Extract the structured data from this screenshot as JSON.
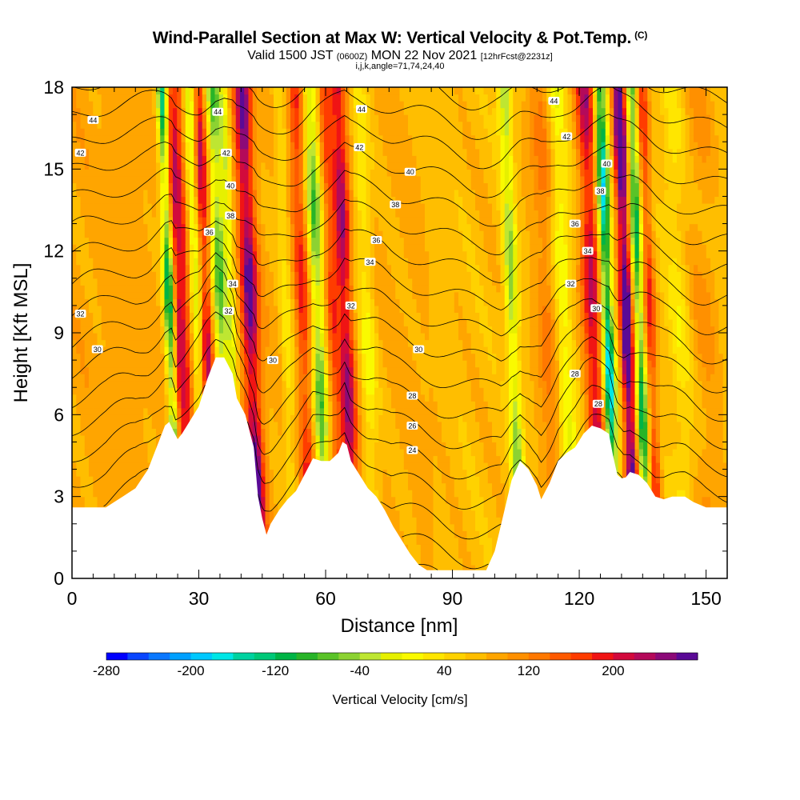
{
  "title": {
    "main": "Wind-Parallel Section at Max W: Vertical Velocity & Pot.Temp.",
    "copyright_mark": "(C)",
    "valid_prefix": "Valid 1500 JST",
    "valid_utc": "(0600Z)",
    "valid_date": "MON 22 Nov 2021",
    "forecast": "[12hrFcst@2231z]",
    "indices": "i,j,k,angle=71,74,24,40"
  },
  "chart_data": {
    "type": "heatmap",
    "title": "Wind-Parallel Section at Max W: Vertical Velocity & Pot.Temp.",
    "xlabel": "Distance [nm]",
    "ylabel": "Height [Kft MSL]",
    "xlim": [
      0,
      155
    ],
    "ylim": [
      0,
      18
    ],
    "x_ticks": [
      0,
      30,
      60,
      90,
      120,
      150
    ],
    "y_ticks": [
      0,
      3,
      6,
      9,
      12,
      15,
      18
    ],
    "colorbar": {
      "label": "Vertical Velocity [cm/s]",
      "min": -280,
      "max": 280,
      "step": 20,
      "tick_labels": [
        "-280",
        "-200",
        "-120",
        "-40",
        "40",
        "120",
        "200"
      ],
      "tick_values": [
        -280,
        -200,
        -120,
        -40,
        40,
        120,
        200
      ],
      "colors": [
        "#0000ff",
        "#0a46ff",
        "#0a78ff",
        "#00a0ff",
        "#00c8ff",
        "#00e6e6",
        "#00d2a0",
        "#00c878",
        "#00b446",
        "#28b428",
        "#5ac328",
        "#8cd232",
        "#bee632",
        "#e6f000",
        "#fafa00",
        "#ffe600",
        "#ffd200",
        "#ffbe00",
        "#ffa500",
        "#ff9000",
        "#ff7800",
        "#ff5a00",
        "#ff3c00",
        "#f01414",
        "#d20a3c",
        "#b40a5a",
        "#8c0a78",
        "#5a0a96"
      ]
    },
    "terrain_kft": [
      [
        0,
        2.6
      ],
      [
        8,
        2.6
      ],
      [
        11,
        2.9
      ],
      [
        15,
        3.3
      ],
      [
        18,
        4.0
      ],
      [
        20,
        4.8
      ],
      [
        22,
        5.6
      ],
      [
        23.5,
        5.8
      ],
      [
        24.5,
        5.0
      ],
      [
        26,
        5.3
      ],
      [
        28,
        5.8
      ],
      [
        30,
        6.3
      ],
      [
        32,
        7.3
      ],
      [
        34,
        8.1
      ],
      [
        36,
        8.1
      ],
      [
        38,
        7.5
      ],
      [
        39,
        6.6
      ],
      [
        41,
        6.0
      ],
      [
        43,
        4.8
      ],
      [
        44,
        3.0
      ],
      [
        45,
        2.2
      ],
      [
        46,
        1.6
      ],
      [
        47,
        2.0
      ],
      [
        49,
        2.5
      ],
      [
        51,
        2.9
      ],
      [
        53,
        3.2
      ],
      [
        55,
        3.8
      ],
      [
        57,
        4.4
      ],
      [
        59,
        4.3
      ],
      [
        61,
        4.3
      ],
      [
        63,
        4.6
      ],
      [
        64.5,
        5.2
      ],
      [
        66,
        4.3
      ],
      [
        68,
        3.8
      ],
      [
        70,
        3.3
      ],
      [
        72,
        3.0
      ],
      [
        74,
        2.5
      ],
      [
        76,
        1.9
      ],
      [
        78,
        1.4
      ],
      [
        80,
        0.9
      ],
      [
        82,
        0.5
      ],
      [
        84,
        0.3
      ],
      [
        86,
        0.3
      ],
      [
        90,
        0.3
      ],
      [
        94,
        0.3
      ],
      [
        98,
        0.3
      ],
      [
        100,
        1.0
      ],
      [
        102,
        2.3
      ],
      [
        104,
        3.6
      ],
      [
        106,
        4.3
      ],
      [
        108,
        4.0
      ],
      [
        110,
        3.4
      ],
      [
        111,
        2.9
      ],
      [
        113,
        3.5
      ],
      [
        115,
        4.3
      ],
      [
        117,
        4.6
      ],
      [
        119,
        4.8
      ],
      [
        121,
        5.3
      ],
      [
        123,
        5.6
      ],
      [
        125,
        5.5
      ],
      [
        127,
        5.3
      ],
      [
        128,
        4.5
      ],
      [
        129,
        3.8
      ],
      [
        130.5,
        3.6
      ],
      [
        132,
        3.9
      ],
      [
        134,
        3.8
      ],
      [
        136,
        3.5
      ],
      [
        138,
        3.0
      ],
      [
        140,
        2.9
      ],
      [
        142,
        3.0
      ],
      [
        145,
        3.0
      ],
      [
        147,
        2.8
      ],
      [
        150,
        2.6
      ],
      [
        155,
        2.6
      ]
    ],
    "vertical_velocity_features_cms": [
      {
        "x": 4,
        "w": 160,
        "amp": 28
      },
      {
        "x": 20,
        "w": 360,
        "amp": 60
      },
      {
        "x": 23.5,
        "w": 1.3,
        "amp": -230
      },
      {
        "x": 25.5,
        "w": 1.6,
        "amp": 150
      },
      {
        "x": 27.3,
        "w": 1.2,
        "amp": 70
      },
      {
        "x": 30,
        "w": 1.4,
        "amp": -130
      },
      {
        "x": 32,
        "w": 1.6,
        "amp": 150
      },
      {
        "x": 35.5,
        "w": 1.8,
        "amp": -175
      },
      {
        "x": 38,
        "w": 1.2,
        "amp": -90
      },
      {
        "x": 42.5,
        "w": 2.0,
        "amp": 200
      },
      {
        "x": 51,
        "w": 1.6,
        "amp": -60
      },
      {
        "x": 55,
        "w": 1.8,
        "amp": 110
      },
      {
        "x": 58.5,
        "w": 1.8,
        "amp": -170
      },
      {
        "x": 62,
        "w": 1.6,
        "amp": 90
      },
      {
        "x": 65,
        "w": 1.8,
        "amp": 170
      },
      {
        "x": 70,
        "w": 2.0,
        "amp": -70
      },
      {
        "x": 82,
        "w": 8,
        "amp": 12
      },
      {
        "x": 88,
        "w": 12,
        "amp": -12
      },
      {
        "x": 104.5,
        "w": 1.6,
        "amp": -130
      },
      {
        "x": 113,
        "w": 3.0,
        "amp": 60
      },
      {
        "x": 116.5,
        "w": 2.2,
        "amp": -90
      },
      {
        "x": 123.5,
        "w": 2.2,
        "amp": 170
      },
      {
        "x": 127,
        "w": 1.4,
        "amp": -270
      },
      {
        "x": 131.5,
        "w": 1.5,
        "amp": 275
      },
      {
        "x": 134.5,
        "w": 1.3,
        "amp": -200
      },
      {
        "x": 137,
        "w": 1.4,
        "amp": 120
      },
      {
        "x": 144,
        "w": 2.5,
        "amp": -40
      },
      {
        "x": 150,
        "w": 4,
        "amp": 40
      }
    ],
    "potential_temperature_contours": {
      "levels": [
        22,
        23,
        24,
        25,
        26,
        27,
        28,
        29,
        30,
        31,
        32,
        33,
        34,
        35,
        36,
        37,
        38,
        39,
        40,
        41,
        42,
        43,
        44,
        45
      ],
      "labels": [
        {
          "text": "44",
          "x": 5,
          "y": 16.8
        },
        {
          "text": "42",
          "x": 2,
          "y": 15.6
        },
        {
          "text": "32",
          "x": 2,
          "y": 9.7
        },
        {
          "text": "30",
          "x": 6,
          "y": 8.4
        },
        {
          "text": "44",
          "x": 34.5,
          "y": 17.1
        },
        {
          "text": "42",
          "x": 36.5,
          "y": 15.6
        },
        {
          "text": "40",
          "x": 37.5,
          "y": 14.4
        },
        {
          "text": "38",
          "x": 37.5,
          "y": 13.3
        },
        {
          "text": "36",
          "x": 32.5,
          "y": 12.7
        },
        {
          "text": "34",
          "x": 38,
          "y": 10.8
        },
        {
          "text": "32",
          "x": 37,
          "y": 9.8
        },
        {
          "text": "30",
          "x": 47.5,
          "y": 8.0
        },
        {
          "text": "44",
          "x": 68.5,
          "y": 17.2
        },
        {
          "text": "42",
          "x": 68,
          "y": 15.8
        },
        {
          "text": "40",
          "x": 80,
          "y": 14.9
        },
        {
          "text": "38",
          "x": 76.5,
          "y": 13.7
        },
        {
          "text": "36",
          "x": 72,
          "y": 12.4
        },
        {
          "text": "34",
          "x": 70.5,
          "y": 11.6
        },
        {
          "text": "32",
          "x": 66,
          "y": 10.0
        },
        {
          "text": "30",
          "x": 82,
          "y": 8.4
        },
        {
          "text": "28",
          "x": 80.5,
          "y": 6.7
        },
        {
          "text": "26",
          "x": 80.5,
          "y": 5.6
        },
        {
          "text": "24",
          "x": 80.5,
          "y": 4.7
        },
        {
          "text": "44",
          "x": 114,
          "y": 17.5
        },
        {
          "text": "42",
          "x": 117,
          "y": 16.2
        },
        {
          "text": "40",
          "x": 126.5,
          "y": 15.2
        },
        {
          "text": "38",
          "x": 125,
          "y": 14.2
        },
        {
          "text": "36",
          "x": 119,
          "y": 13.0
        },
        {
          "text": "34",
          "x": 122,
          "y": 12.0
        },
        {
          "text": "32",
          "x": 118,
          "y": 10.8
        },
        {
          "text": "30",
          "x": 124,
          "y": 9.9
        },
        {
          "text": "28",
          "x": 119,
          "y": 7.5
        },
        {
          "text": "28",
          "x": 124.5,
          "y": 6.4
        }
      ]
    },
    "grid": false,
    "legend": "bottom"
  }
}
